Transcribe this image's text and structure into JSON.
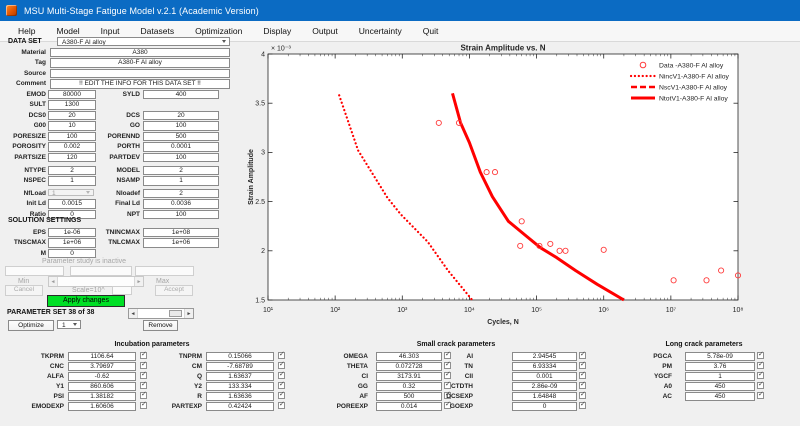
{
  "window": {
    "title": "MSU Multi-Stage Fatigue Model v.2.1 (Academic Version)"
  },
  "menu_items": [
    "Help",
    "Model",
    "Input",
    "Datasets",
    "Optimization",
    "Display",
    "Output",
    "Uncertainty",
    "Quit"
  ],
  "colors": {
    "titlebar_blue": "#0b6bc3",
    "apply_button_green": "#00df25",
    "plot_red": "#ff0000"
  },
  "dataset_panel": {
    "header": "DATA SET",
    "dataset_select_value": "A380-F Al alloy",
    "info_rows": [
      {
        "label": "Material",
        "value": "A380"
      },
      {
        "label": "Tag",
        "value": "A380-F Al alloy"
      },
      {
        "label": "Source",
        "value": ""
      },
      {
        "label": "Comment",
        "value": "!! EDIT THE INFO FOR THIS DATA SET !!"
      }
    ],
    "pair_rows": [
      {
        "l1": "EMOD",
        "v1": "80000",
        "l2": "SYLD",
        "v2": "400"
      },
      {
        "l1": "SULT",
        "v1": "1300"
      },
      {
        "l1": "DCS0",
        "v1": "20",
        "l2": "DCS",
        "v2": "20"
      },
      {
        "l1": "G00",
        "v1": "10",
        "l2": "GO",
        "v2": "100"
      },
      {
        "l1": "PORESIZE",
        "v1": "100",
        "l2": "PORENND",
        "v2": "500"
      },
      {
        "l1": "POROSITY",
        "v1": "0.002",
        "l2": "PORTH",
        "v2": "0.0001"
      },
      {
        "l1": "PARTSIZE",
        "v1": "120",
        "l2": "PARTDEV",
        "v2": "100"
      }
    ],
    "model_rows": [
      {
        "l1": "NTYPE",
        "v1": "2",
        "l2": "MODEL",
        "v2": "2"
      },
      {
        "l1": "NSPEC",
        "v1": "1",
        "l2": "NSAMP",
        "v2": "1"
      }
    ],
    "nfload_row": {
      "label": "NfLoad",
      "value": "1",
      "label2": "Nloadef",
      "value2": "2"
    },
    "load_rows": [
      {
        "l1": "Init Ld",
        "v1": "0.0015",
        "l2": "Final Ld",
        "v2": "0.0036"
      },
      {
        "l1": "Ratio",
        "v1": "0",
        "l2": "NPT",
        "v2": "100"
      }
    ],
    "solution_header": "SOLUTION SETTINGS",
    "solution_rows": [
      {
        "l1": "EPS",
        "v1": "1e-06",
        "l2": "TNINCMAX",
        "v2": "1e+08"
      },
      {
        "l1": "TNSCMAX",
        "v1": "1e+06",
        "l2": "TNLCMAX",
        "v2": "1e+06"
      },
      {
        "l1": "M",
        "v1": "0"
      }
    ]
  },
  "parameter_study": {
    "status": "Parameter study is inactive",
    "min_label": "Min",
    "max_label": "Max",
    "cancel_label": "Cancel",
    "scale_label": "Scale=10^",
    "accept_label": "Accept",
    "apply_label": "Apply changes"
  },
  "parameter_set": {
    "label": "PARAMETER SET 38 of 38",
    "optimize_label": "Optimize",
    "spinner_value": "1",
    "remove_label": "Remove"
  },
  "chart_data": {
    "type": "scatter",
    "title": "Strain Amplitude vs. N",
    "xlabel": "Cycles, N",
    "ylabel": "Strain Amplitude",
    "x_scale": "log",
    "xlim_exponents": [
      1,
      8
    ],
    "x_tick_exponents": [
      1,
      2,
      3,
      4,
      5,
      6,
      7,
      8
    ],
    "ylim": [
      1.5,
      4
    ],
    "yticks": [
      1.5,
      2,
      2.5,
      3,
      3.5,
      4
    ],
    "y_scale_label": "× 10",
    "y_scale_exponent": -3,
    "y_units_note": "strain values are in units of 10^-3",
    "grid": false,
    "legend_position": "upper-right-inside-no-box",
    "series": [
      {
        "name": "Data -A380-F Al alloy",
        "kind": "scatter",
        "marker": "o",
        "color": "#ff3b3b",
        "points": [
          [
            3500,
            3.3
          ],
          [
            7000,
            3.3
          ],
          [
            18000,
            2.8
          ],
          [
            24000,
            2.8
          ],
          [
            60000,
            2.3
          ],
          [
            57000,
            2.05
          ],
          [
            110000,
            2.05
          ],
          [
            160000,
            2.07
          ],
          [
            220000,
            2.0
          ],
          [
            270000,
            2.0
          ],
          [
            1000000,
            2.01
          ],
          [
            11000000,
            1.7
          ],
          [
            34000000,
            1.7
          ],
          [
            56000000,
            1.8
          ],
          [
            100000000,
            1.75
          ]
        ]
      },
      {
        "name": "NincV1-A380-F Al alloy",
        "kind": "line",
        "style": "dotted",
        "color": "#ff0000",
        "points": [
          [
            115,
            3.58
          ],
          [
            220,
            3.02
          ],
          [
            600,
            2.54
          ],
          [
            950,
            2.37
          ],
          [
            2400,
            2.09
          ],
          [
            4800,
            1.8
          ],
          [
            11000,
            1.5
          ]
        ]
      },
      {
        "name": "NscV1-A380-F Al alloy",
        "kind": "line",
        "style": "dashed",
        "color": "#ff0000",
        "points": [
          [
            5600,
            3.6
          ],
          [
            7400,
            3.3
          ],
          [
            10000,
            3.1
          ],
          [
            14500,
            2.8
          ],
          [
            22000,
            2.55
          ],
          [
            38000,
            2.3
          ],
          [
            70000,
            2.15
          ],
          [
            115000,
            2.03
          ],
          [
            200000,
            1.93
          ],
          [
            380000,
            1.8
          ],
          [
            800000,
            1.66
          ],
          [
            2000000,
            1.5
          ]
        ]
      },
      {
        "name": "NtotV1-A380-F Al alloy",
        "kind": "line",
        "style": "solid",
        "color": "#ff0000",
        "points": [
          [
            5600,
            3.6
          ],
          [
            7400,
            3.3
          ],
          [
            10000,
            3.1
          ],
          [
            14500,
            2.8
          ],
          [
            22000,
            2.55
          ],
          [
            38000,
            2.3
          ],
          [
            70000,
            2.15
          ],
          [
            115000,
            2.03
          ],
          [
            200000,
            1.93
          ],
          [
            380000,
            1.8
          ],
          [
            800000,
            1.66
          ],
          [
            2000000,
            1.5
          ]
        ]
      }
    ]
  },
  "panels": {
    "incubation": {
      "title": "Incubation parameters",
      "rows": [
        {
          "l1": "TKPRM",
          "v1": "1106.64",
          "c1": true,
          "l2": "TNPRM",
          "v2": "0.15066",
          "c2": true
        },
        {
          "l1": "CNC",
          "v1": "3.79697",
          "c1": true,
          "l2": "CM",
          "v2": "-7.68789",
          "c2": true
        },
        {
          "l1": "ALFA",
          "v1": "-0.62",
          "c1": true,
          "l2": "Q",
          "v2": "1.63637",
          "c2": true
        },
        {
          "l1": "Y1",
          "v1": "860.606",
          "c1": true,
          "l2": "Y2",
          "v2": "133.334",
          "c2": true
        },
        {
          "l1": "PSI",
          "v1": "1.38182",
          "c1": true,
          "l2": "R",
          "v2": "1.63636",
          "c2": true
        },
        {
          "l1": "EMODEXP",
          "v1": "1.60606",
          "c1": true,
          "l2": "PARTEXP",
          "v2": "0.42424",
          "c2": true
        }
      ]
    },
    "small_crack": {
      "title": "Small crack parameters",
      "rows": [
        {
          "l1": "OMEGA",
          "v1": "46.303",
          "c1": true,
          "l2": "AI",
          "v2": "2.94545",
          "c2": true
        },
        {
          "l1": "THETA",
          "v1": "0.072728",
          "c1": true,
          "l2": "TN",
          "v2": "6.93334",
          "c2": true
        },
        {
          "l1": "CI",
          "v1": "3173.91",
          "c1": true,
          "l2": "CII",
          "v2": "0.001",
          "c2": true
        },
        {
          "l1": "GG",
          "v1": "0.32",
          "c1": true,
          "l2": "CTDTH",
          "v2": "2.86e-09",
          "c2": true
        },
        {
          "l1": "AF",
          "v1": "500",
          "c1": true,
          "l2": "DCSEXP",
          "v2": "1.64848",
          "c2": true
        },
        {
          "l1": "POREEXP",
          "v1": "0.014",
          "c1": true,
          "l2": "GOEXP",
          "v2": "0",
          "c2": true
        }
      ]
    },
    "long_crack": {
      "title": "Long crack parameters",
      "rows": [
        {
          "l1": "PGCA",
          "v1": "5.78e-09",
          "c1": true
        },
        {
          "l1": "PM",
          "v1": "3.76",
          "c1": true
        },
        {
          "l1": "YGCF",
          "v1": "1",
          "c1": true
        },
        {
          "l1": "A0",
          "v1": "450",
          "c1": true
        },
        {
          "l1": "AC",
          "v1": "450",
          "c1": true
        }
      ]
    }
  }
}
